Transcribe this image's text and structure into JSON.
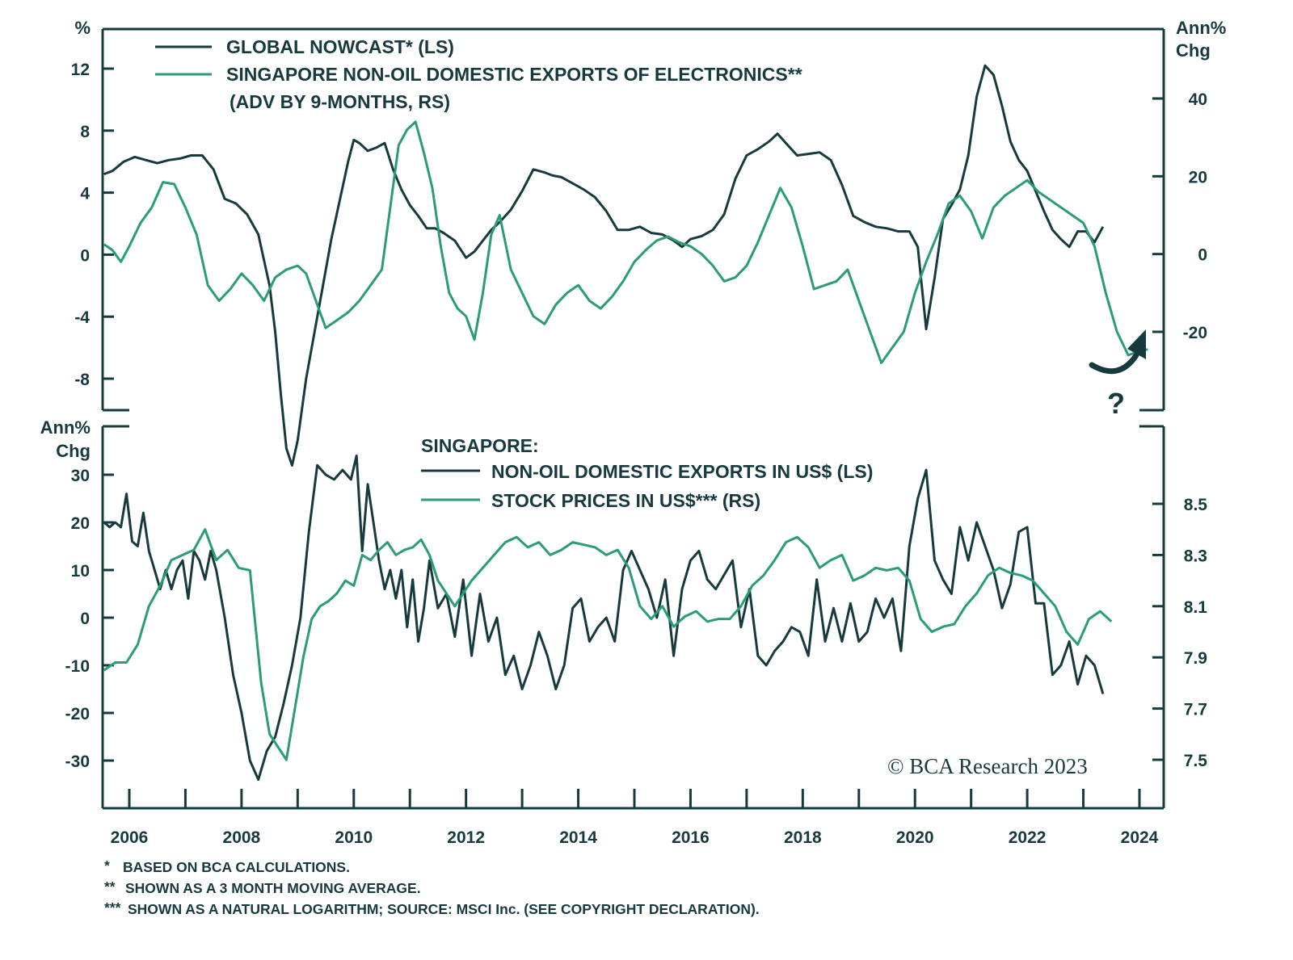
{
  "chart_data": [
    {
      "type": "line",
      "panel": "top",
      "left_axis_unit": "%",
      "right_axis_unit": [
        "Ann%",
        "Chg"
      ],
      "left_ticks": [
        "12",
        "8",
        "4",
        "0",
        "-4",
        "-8"
      ],
      "right_ticks": [
        "40",
        "20",
        "0",
        "-20"
      ],
      "ylim_left": [
        -10,
        14
      ],
      "ylim_right": [
        -35,
        50
      ],
      "legend": [
        {
          "label": "GLOBAL NOWCAST* (LS)",
          "color": "#173a3f"
        },
        {
          "label": "SINGAPORE NON-OIL DOMESTIC EXPORTS OF ELECTRONICS**",
          "label2": "(ADV BY 9-MONTHS, RS)",
          "color": "#2a9d76"
        }
      ],
      "annotation": "?",
      "series": [
        {
          "name": "Global Nowcast (LS)",
          "axis": "left",
          "x": [
            2005.55,
            2005.7,
            2005.9,
            2006.1,
            2006.3,
            2006.5,
            2006.7,
            2006.9,
            2007.1,
            2007.3,
            2007.5,
            2007.7,
            2007.9,
            2008.1,
            2008.3,
            2008.5,
            2008.6,
            2008.7,
            2008.8,
            2008.9,
            2009.0,
            2009.15,
            2009.3,
            2009.45,
            2009.6,
            2009.75,
            2009.9,
            2010.0,
            2010.1,
            2010.25,
            2010.4,
            2010.55,
            2010.7,
            2010.85,
            2011.0,
            2011.15,
            2011.3,
            2011.45,
            2011.6,
            2011.8,
            2012.0,
            2012.15,
            2012.3,
            2012.45,
            2012.6,
            2012.8,
            2013.0,
            2013.2,
            2013.4,
            2013.55,
            2013.7,
            2013.9,
            2014.1,
            2014.3,
            2014.5,
            2014.7,
            2014.9,
            2015.1,
            2015.3,
            2015.5,
            2015.7,
            2015.85,
            2016.0,
            2016.2,
            2016.4,
            2016.6,
            2016.8,
            2017.0,
            2017.2,
            2017.4,
            2017.55,
            2017.7,
            2017.9,
            2018.1,
            2018.3,
            2018.5,
            2018.7,
            2018.9,
            2019.1,
            2019.3,
            2019.5,
            2019.7,
            2019.9,
            2020.05,
            2020.2,
            2020.35,
            2020.5,
            2020.65,
            2020.8,
            2020.95,
            2021.1,
            2021.25,
            2021.4,
            2021.55,
            2021.7,
            2021.85,
            2022.0,
            2022.15,
            2022.3,
            2022.45,
            2022.6,
            2022.75,
            2022.9,
            2023.05,
            2023.2,
            2023.35
          ],
          "y": [
            5.2,
            5.4,
            6.0,
            6.3,
            6.1,
            5.9,
            6.1,
            6.2,
            6.4,
            6.4,
            5.5,
            3.6,
            3.3,
            2.6,
            1.3,
            -2.0,
            -5.0,
            -9.0,
            -12.5,
            -13.6,
            -12.0,
            -8.0,
            -5.0,
            -2.0,
            1.0,
            3.5,
            6.0,
            7.4,
            7.2,
            6.7,
            6.9,
            7.2,
            5.5,
            4.2,
            3.2,
            2.5,
            1.7,
            1.7,
            1.4,
            0.9,
            -0.2,
            0.2,
            0.9,
            1.6,
            2.1,
            2.9,
            4.1,
            5.5,
            5.3,
            5.1,
            5.0,
            4.6,
            4.2,
            3.7,
            2.8,
            1.6,
            1.6,
            1.8,
            1.4,
            1.3,
            0.9,
            0.5,
            1.0,
            1.2,
            1.6,
            2.6,
            4.9,
            6.4,
            6.8,
            7.3,
            7.8,
            7.2,
            6.4,
            6.5,
            6.6,
            6.1,
            4.5,
            2.5,
            2.1,
            1.8,
            1.7,
            1.5,
            1.5,
            0.5,
            -4.8,
            -1.5,
            2.3,
            3.2,
            4.2,
            6.4,
            10.2,
            12.2,
            11.6,
            9.6,
            7.3,
            6.1,
            5.4,
            4.1,
            2.8,
            1.6,
            1.0,
            0.5,
            1.5,
            1.5,
            0.8,
            1.8
          ]
        },
        {
          "name": "Singapore Non-Oil Domestic Exports of Electronics, adv 9m (RS)",
          "axis": "right",
          "x": [
            2005.55,
            2005.7,
            2005.85,
            2006.0,
            2006.2,
            2006.4,
            2006.6,
            2006.8,
            2007.0,
            2007.2,
            2007.4,
            2007.6,
            2007.8,
            2008.0,
            2008.2,
            2008.4,
            2008.6,
            2008.8,
            2009.0,
            2009.15,
            2009.35,
            2009.5,
            2009.7,
            2009.9,
            2010.1,
            2010.3,
            2010.5,
            2010.65,
            2010.8,
            2010.95,
            2011.1,
            2011.25,
            2011.4,
            2011.55,
            2011.7,
            2011.85,
            2012.0,
            2012.15,
            2012.3,
            2012.45,
            2012.6,
            2012.8,
            2013.0,
            2013.2,
            2013.4,
            2013.6,
            2013.8,
            2014.0,
            2014.2,
            2014.4,
            2014.6,
            2014.8,
            2015.0,
            2015.2,
            2015.4,
            2015.6,
            2015.8,
            2016.0,
            2016.2,
            2016.4,
            2016.6,
            2016.8,
            2017.0,
            2017.2,
            2017.4,
            2017.6,
            2017.8,
            2018.0,
            2018.2,
            2018.4,
            2018.6,
            2018.8,
            2019.0,
            2019.2,
            2019.4,
            2019.6,
            2019.8,
            2020.0,
            2020.2,
            2020.4,
            2020.6,
            2020.8,
            2021.0,
            2021.2,
            2021.4,
            2021.6,
            2021.8,
            2022.0,
            2022.2,
            2022.4,
            2022.6,
            2022.8,
            2023.0,
            2023.2,
            2023.4,
            2023.6,
            2023.8,
            2024.0,
            2024.15
          ],
          "y": [
            2.5,
            1.0,
            -2.0,
            2.0,
            8.0,
            12.0,
            18.5,
            18.0,
            12.0,
            5.0,
            -8.0,
            -12.0,
            -9.0,
            -5.0,
            -8.0,
            -12.0,
            -6.0,
            -4.0,
            -3.0,
            -5.0,
            -13.0,
            -19.0,
            -17.0,
            -15.0,
            -12.0,
            -8.0,
            -4.0,
            12.0,
            28.0,
            32.0,
            34.0,
            26.0,
            17.0,
            2.0,
            -10.0,
            -14.0,
            -16.0,
            -22.0,
            -10.0,
            5.0,
            10.0,
            -4.0,
            -10.0,
            -16.0,
            -18.0,
            -13.0,
            -10.0,
            -8.0,
            -12.0,
            -14.0,
            -11.0,
            -7.0,
            -2.0,
            1.0,
            3.5,
            4.5,
            3.0,
            2.0,
            0.0,
            -3.0,
            -7.0,
            -6.0,
            -3.0,
            3.0,
            10.0,
            17.0,
            12.0,
            2.0,
            -9.0,
            -8.0,
            -7.0,
            -4.0,
            -12.0,
            -20.0,
            -28.0,
            -24.0,
            -20.0,
            -10.0,
            -2.0,
            5.0,
            13.0,
            15.0,
            11.0,
            4.0,
            12.0,
            15.0,
            17.0,
            19.0,
            16.0,
            14.0,
            12.0,
            10.0,
            8.0,
            2.0,
            -10.0,
            -20.0,
            -26.0,
            -25.0,
            -24.5
          ]
        }
      ]
    },
    {
      "type": "line",
      "panel": "bottom",
      "title": "SINGAPORE:",
      "left_axis_unit": [
        "Ann%",
        "Chg"
      ],
      "left_ticks": [
        "30",
        "20",
        "10",
        "0",
        "-10",
        "-20",
        "-30"
      ],
      "right_ticks": [
        "8.5",
        "8.3",
        "8.1",
        "7.9",
        "7.7",
        "7.5"
      ],
      "ylim_left": [
        -40,
        42
      ],
      "ylim_right": [
        7.3,
        8.7
      ],
      "legend": [
        {
          "label": "NON-OIL DOMESTIC EXPORTS IN US$ (LS)",
          "color": "#173a3f"
        },
        {
          "label": "STOCK PRICES IN US$*** (RS)",
          "color": "#2a9d76"
        }
      ],
      "xlabel_ticks": [
        "2006",
        "2008",
        "2010",
        "2012",
        "2014",
        "2016",
        "2018",
        "2020",
        "2022",
        "2024"
      ],
      "xlim": [
        2005.5,
        2024.4
      ],
      "series": [
        {
          "name": "Non-Oil Domestic Exports in US$ (LS)",
          "axis": "left",
          "x": [
            2005.55,
            2005.65,
            2005.75,
            2005.85,
            2005.95,
            2006.05,
            2006.15,
            2006.25,
            2006.35,
            2006.45,
            2006.55,
            2006.65,
            2006.75,
            2006.85,
            2006.95,
            2007.05,
            2007.15,
            2007.25,
            2007.35,
            2007.45,
            2007.55,
            2007.7,
            2007.85,
            2008.0,
            2008.15,
            2008.3,
            2008.45,
            2008.6,
            2008.75,
            2008.9,
            2009.05,
            2009.2,
            2009.35,
            2009.5,
            2009.65,
            2009.8,
            2009.95,
            2010.05,
            2010.15,
            2010.25,
            2010.35,
            2010.45,
            2010.55,
            2010.65,
            2010.75,
            2010.85,
            2010.95,
            2011.05,
            2011.15,
            2011.25,
            2011.35,
            2011.5,
            2011.65,
            2011.8,
            2011.95,
            2012.1,
            2012.25,
            2012.4,
            2012.55,
            2012.7,
            2012.85,
            2013.0,
            2013.15,
            2013.3,
            2013.45,
            2013.6,
            2013.75,
            2013.9,
            2014.05,
            2014.2,
            2014.35,
            2014.5,
            2014.65,
            2014.8,
            2014.95,
            2015.1,
            2015.25,
            2015.4,
            2015.55,
            2015.7,
            2015.85,
            2016.0,
            2016.15,
            2016.3,
            2016.45,
            2016.6,
            2016.75,
            2016.9,
            2017.05,
            2017.2,
            2017.35,
            2017.5,
            2017.65,
            2017.8,
            2017.95,
            2018.1,
            2018.25,
            2018.4,
            2018.55,
            2018.7,
            2018.85,
            2019.0,
            2019.15,
            2019.3,
            2019.45,
            2019.6,
            2019.75,
            2019.9,
            2020.05,
            2020.2,
            2020.35,
            2020.5,
            2020.65,
            2020.8,
            2020.95,
            2021.1,
            2021.25,
            2021.4,
            2021.55,
            2021.7,
            2021.85,
            2022.0,
            2022.15,
            2022.3,
            2022.45,
            2022.6,
            2022.75,
            2022.9,
            2023.05,
            2023.2,
            2023.35
          ],
          "y": [
            20,
            19,
            20,
            19,
            26,
            16,
            15,
            22,
            14,
            10,
            6,
            10,
            6,
            10,
            12,
            4,
            14,
            12,
            8,
            14,
            10,
            0,
            -12,
            -20,
            -30,
            -34,
            -28,
            -25,
            -18,
            -10,
            0,
            18,
            32,
            30,
            29,
            31,
            29,
            34,
            14,
            28,
            20,
            12,
            6,
            10,
            4,
            10,
            -2,
            8,
            -5,
            2,
            12,
            2,
            5,
            -4,
            8,
            -8,
            5,
            -5,
            0,
            -12,
            -8,
            -15,
            -10,
            -3,
            -8,
            -15,
            -10,
            2,
            4,
            -5,
            -2,
            0,
            -5,
            10,
            14,
            10,
            6,
            0,
            8,
            -8,
            6,
            12,
            14,
            8,
            6,
            9,
            12,
            -2,
            6,
            -8,
            -10,
            -7,
            -5,
            -2,
            -3,
            -8,
            8,
            -5,
            2,
            -5,
            3,
            -5,
            -3,
            4,
            0,
            4,
            -7,
            15,
            25,
            31,
            12,
            8,
            5,
            19,
            12,
            20,
            15,
            10,
            2,
            7,
            18,
            19,
            3,
            3,
            -12,
            -10,
            -5,
            -14,
            -8,
            -10,
            -16
          ],
          "note": "approximate monthly trace"
        },
        {
          "name": "Stock Prices in US$ (RS, natural log)",
          "axis": "right",
          "x": [
            2005.55,
            2005.75,
            2005.95,
            2006.15,
            2006.35,
            2006.55,
            2006.75,
            2006.95,
            2007.15,
            2007.35,
            2007.55,
            2007.75,
            2007.95,
            2008.15,
            2008.35,
            2008.5,
            2008.65,
            2008.8,
            2008.95,
            2009.1,
            2009.25,
            2009.4,
            2009.55,
            2009.7,
            2009.85,
            2010.0,
            2010.15,
            2010.3,
            2010.45,
            2010.6,
            2010.75,
            2010.9,
            2011.05,
            2011.2,
            2011.35,
            2011.5,
            2011.65,
            2011.8,
            2011.95,
            2012.1,
            2012.3,
            2012.5,
            2012.7,
            2012.9,
            2013.1,
            2013.3,
            2013.5,
            2013.7,
            2013.9,
            2014.1,
            2014.3,
            2014.5,
            2014.7,
            2014.9,
            2015.1,
            2015.3,
            2015.5,
            2015.7,
            2015.9,
            2016.1,
            2016.3,
            2016.5,
            2016.7,
            2016.9,
            2017.1,
            2017.3,
            2017.5,
            2017.7,
            2017.9,
            2018.1,
            2018.3,
            2018.5,
            2018.7,
            2018.9,
            2019.1,
            2019.3,
            2019.5,
            2019.7,
            2019.9,
            2020.1,
            2020.3,
            2020.5,
            2020.7,
            2020.9,
            2021.1,
            2021.3,
            2021.5,
            2021.7,
            2021.9,
            2022.1,
            2022.3,
            2022.5,
            2022.7,
            2022.9,
            2023.1,
            2023.3,
            2023.5
          ],
          "y": [
            7.85,
            7.88,
            7.88,
            7.95,
            8.1,
            8.18,
            8.28,
            8.3,
            8.32,
            8.4,
            8.28,
            8.32,
            8.25,
            8.24,
            7.8,
            7.6,
            7.55,
            7.5,
            7.7,
            7.9,
            8.05,
            8.1,
            8.12,
            8.15,
            8.2,
            8.18,
            8.3,
            8.28,
            8.32,
            8.35,
            8.3,
            8.32,
            8.33,
            8.36,
            8.3,
            8.2,
            8.15,
            8.1,
            8.15,
            8.2,
            8.25,
            8.3,
            8.35,
            8.37,
            8.33,
            8.35,
            8.3,
            8.32,
            8.35,
            8.34,
            8.33,
            8.3,
            8.32,
            8.25,
            8.1,
            8.05,
            8.1,
            8.02,
            8.06,
            8.08,
            8.04,
            8.05,
            8.05,
            8.1,
            8.18,
            8.22,
            8.28,
            8.35,
            8.37,
            8.33,
            8.25,
            8.28,
            8.3,
            8.2,
            8.22,
            8.25,
            8.24,
            8.25,
            8.2,
            8.05,
            8.0,
            8.02,
            8.03,
            8.1,
            8.15,
            8.22,
            8.25,
            8.23,
            8.22,
            8.2,
            8.15,
            8.1,
            8.0,
            7.95,
            8.05,
            8.08,
            8.04
          ],
          "note": "approximate monthly trace"
        }
      ]
    }
  ],
  "footnotes": [
    {
      "marker": "*",
      "text": "BASED ON BCA CALCULATIONS."
    },
    {
      "marker": "**",
      "text": "SHOWN AS A 3 MONTH MOVING AVERAGE."
    },
    {
      "marker": "***",
      "text": "SHOWN AS A NATURAL LOGARITHM; SOURCE: MSCI Inc. (SEE COPYRIGHT DECLARATION)."
    }
  ],
  "copyright": "© BCA Research 2023",
  "colors": {
    "dark": "#173a3f",
    "green": "#2a9d76"
  }
}
